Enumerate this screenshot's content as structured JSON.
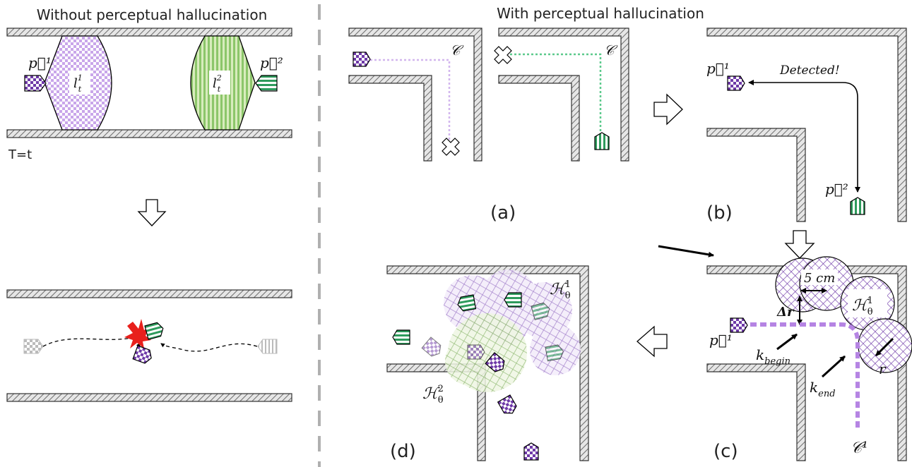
{
  "left_panel": {
    "title": "Without perceptual hallucination",
    "time_label": "T=t",
    "robot1_label": "p⃗¹",
    "robot2_label": "p⃗²",
    "footprint1_label": "l",
    "footprint1_sup": "1",
    "footprint1_sub": "t",
    "footprint2_label": "l",
    "footprint2_sup": "2",
    "footprint2_sub": "t"
  },
  "right_panel": {
    "title": "With perceptual hallucination",
    "a": {
      "caption": "(a)",
      "path_label_1": "𝒞",
      "path_label_2": "𝒞"
    },
    "b": {
      "caption": "(b)",
      "robot1_label": "p⃗¹",
      "robot2_label": "p⃗²",
      "detected_label": "Detected!"
    },
    "c": {
      "caption": "(c)",
      "distance_label": "5 cm",
      "delta_label": "Δr",
      "h_label": "ℋ",
      "h_sub": "θ",
      "h_sup": "1",
      "robot_label": "p⃗¹",
      "k_begin_label": "k",
      "k_begin_sub": "begin",
      "k_end_label": "k",
      "k_end_sub": "end",
      "r_label": "r",
      "path_label": "𝒞¹"
    },
    "d": {
      "caption": "(d)",
      "h1_label": "ℋ",
      "h1_sub": "θ",
      "h1_sup": "1",
      "h2_label": "ℋ",
      "h2_sub": "θ",
      "h2_sup": "2"
    }
  },
  "colors": {
    "purple": "#6f3aa8",
    "purple_light": "#c9a6ea",
    "green": "#2e9b5c",
    "green_light": "#b6dd8a",
    "wall": "#bdbdbd",
    "collision": "#e8201c"
  }
}
